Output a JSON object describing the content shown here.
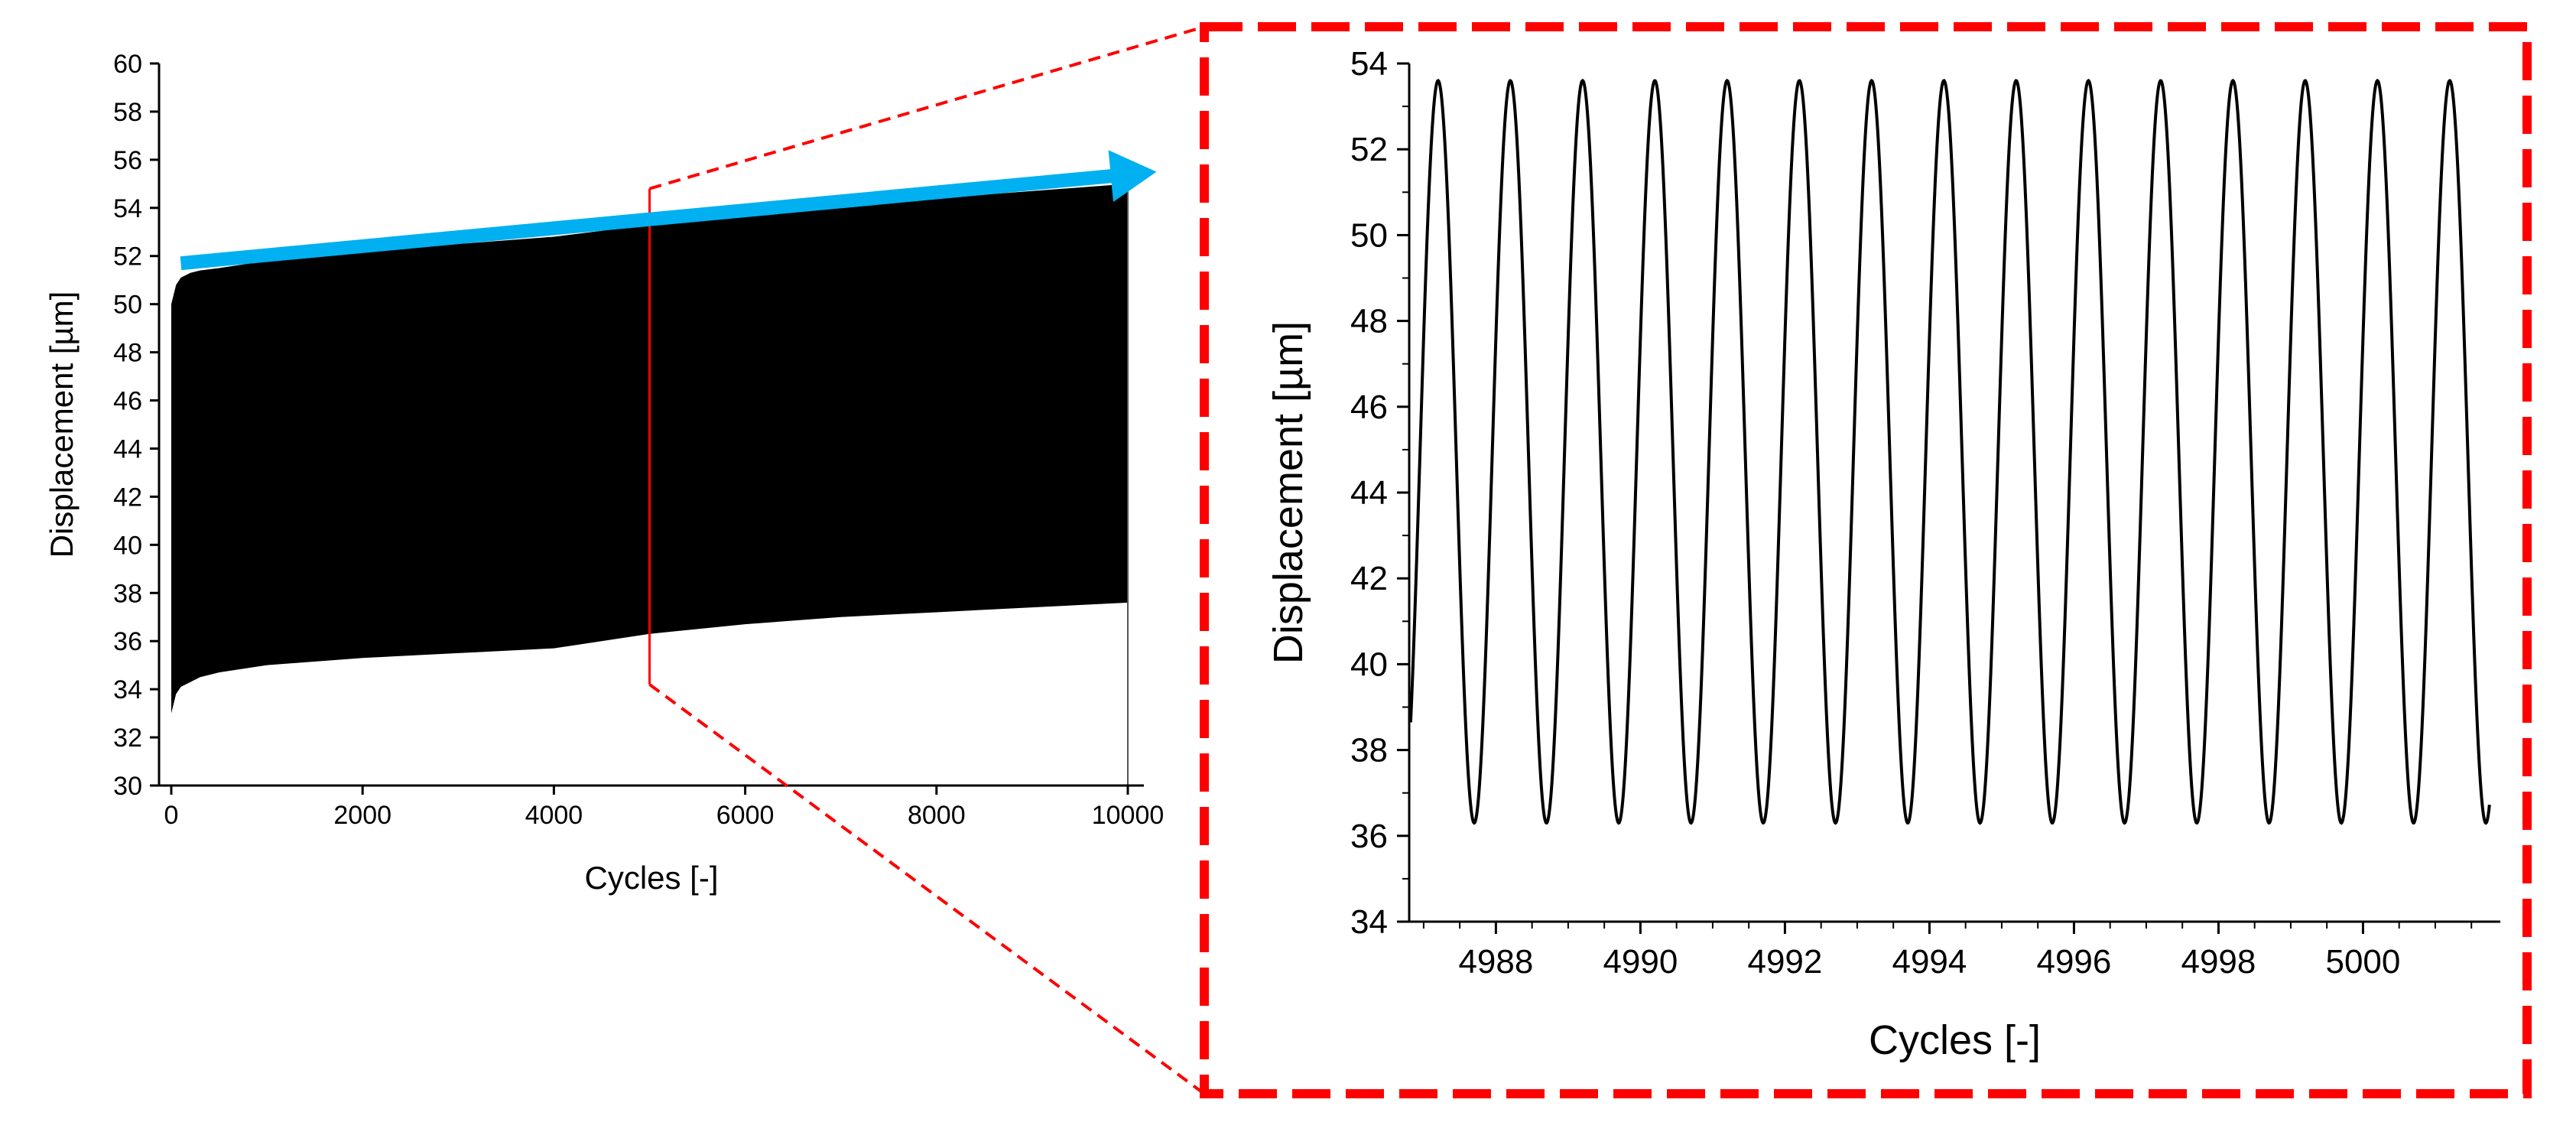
{
  "chart_data": [
    {
      "type": "area",
      "xlabel": "Cycles [-]",
      "ylabel": "Displacement [µm]",
      "xlim": [
        0,
        10000
      ],
      "ylim": [
        30,
        60
      ],
      "x_ticks": [
        0,
        2000,
        4000,
        6000,
        8000,
        10000
      ],
      "y_ticks": [
        30,
        32,
        34,
        36,
        38,
        40,
        42,
        44,
        46,
        48,
        50,
        52,
        54,
        56,
        58,
        60
      ],
      "grid": false,
      "series": [
        {
          "band": "max",
          "x": [
            0,
            50,
            100,
            200,
            300,
            500,
            1000,
            2000,
            3000,
            4000,
            5000,
            6000,
            7000,
            8000,
            9000,
            10000
          ],
          "values": [
            50.0,
            50.8,
            51.1,
            51.3,
            51.4,
            51.5,
            51.8,
            52.2,
            52.5,
            52.8,
            53.3,
            53.7,
            54.1,
            54.4,
            54.7,
            55.0
          ]
        },
        {
          "band": "min",
          "x": [
            0,
            50,
            100,
            200,
            300,
            500,
            1000,
            2000,
            3000,
            4000,
            5000,
            6000,
            7000,
            8000,
            9000,
            10000
          ],
          "values": [
            33.0,
            33.8,
            34.1,
            34.3,
            34.5,
            34.7,
            35.0,
            35.3,
            35.5,
            35.7,
            36.3,
            36.7,
            37.0,
            37.2,
            37.4,
            37.6
          ]
        }
      ],
      "annotations": [
        {
          "type": "trend-arrow",
          "color": "#00b0f0",
          "from": [
            100,
            51.7
          ],
          "to": [
            10300,
            55.5
          ]
        },
        {
          "type": "zoom-marker",
          "color": "#ff0000",
          "x": 5000,
          "y_range": [
            34.2,
            54.8
          ]
        }
      ]
    },
    {
      "type": "line",
      "xlabel": "Cycles [-]",
      "ylabel": "Displacement [µm]",
      "xlim": [
        4986.8,
        5001.9
      ],
      "ylim": [
        34,
        54
      ],
      "x_ticks": [
        4988,
        4990,
        4992,
        4994,
        4996,
        4998,
        5000
      ],
      "y_ticks": [
        34,
        36,
        38,
        40,
        42,
        44,
        46,
        48,
        50,
        52,
        54
      ],
      "grid": false,
      "series": [
        {
          "waveform": "sinusoidal",
          "period": 1,
          "peak": 53.6,
          "trough": 36.3,
          "first_peak_x": 4987.2,
          "x_start": 4986.82,
          "x_end": 5001.75
        }
      ]
    }
  ],
  "colors": {
    "fill": "#000000",
    "trend_arrow": "#00b0f0",
    "zoom_frame": "#ff0000"
  }
}
